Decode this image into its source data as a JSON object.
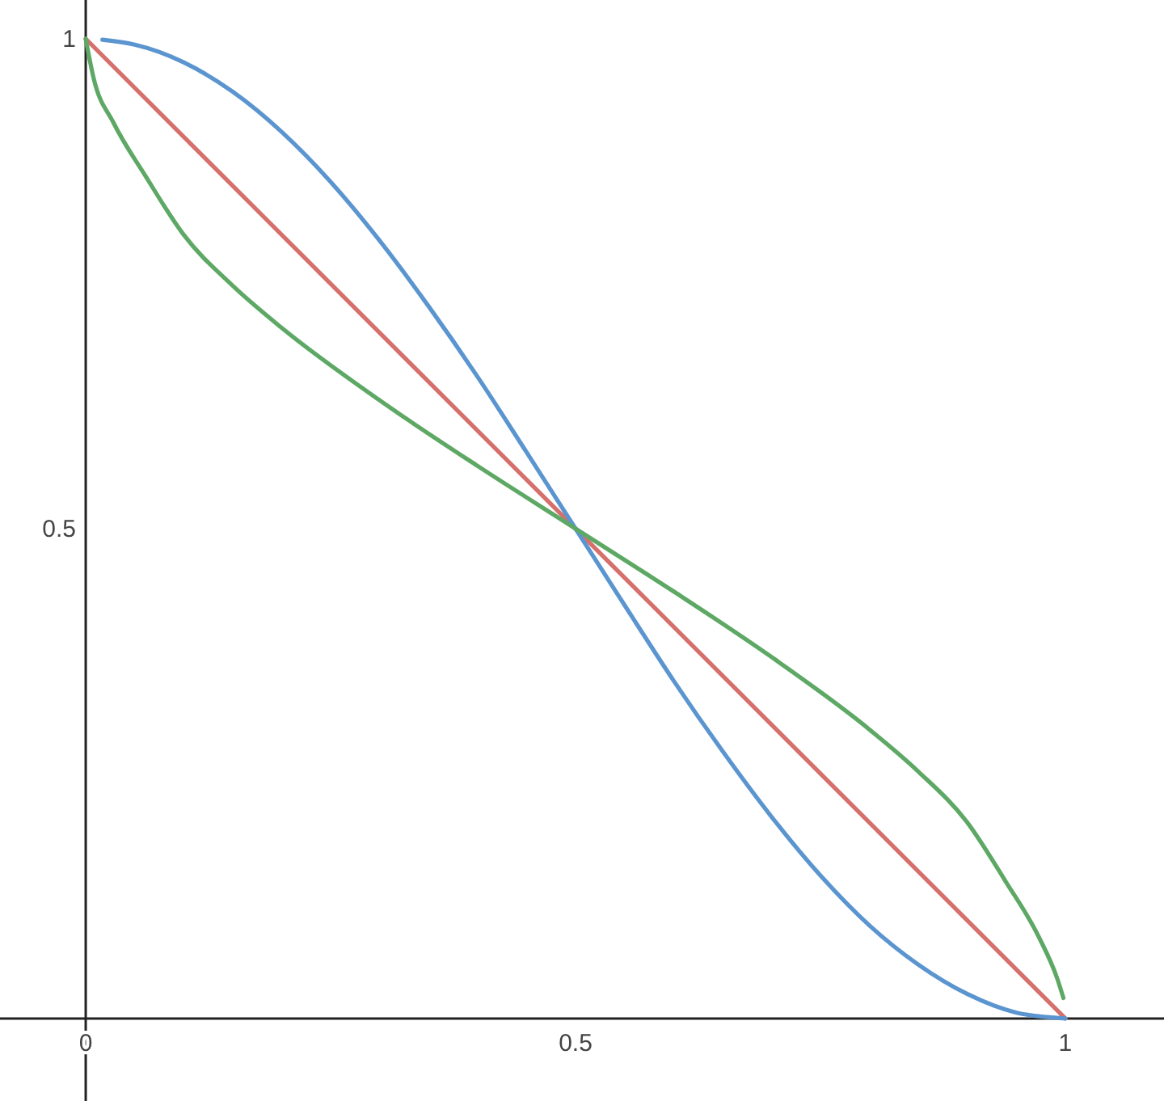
{
  "chart_data": {
    "type": "line",
    "xlim": [
      -0.0875,
      1.1007
    ],
    "ylim": [
      -0.0842,
      1.0396
    ],
    "xticks": [
      0,
      0.5,
      1
    ],
    "yticks": [
      0.5,
      1
    ],
    "grid": false,
    "marker": "none",
    "line_style": "solid",
    "series": [
      {
        "color": "#d6706c",
        "x": [
          0,
          1
        ],
        "values": [
          1,
          0
        ]
      },
      {
        "color": "#5b95d0",
        "x": [
          0.017,
          0.05,
          0.1,
          0.15,
          0.2,
          0.25,
          0.3,
          0.35,
          0.4,
          0.45,
          0.5,
          0.55,
          0.6,
          0.65,
          0.7,
          0.75,
          0.8,
          0.85,
          0.9,
          0.95,
          1
        ],
        "values": [
          0.999,
          0.994,
          0.976,
          0.946,
          0.905,
          0.854,
          0.794,
          0.727,
          0.655,
          0.578,
          0.5,
          0.422,
          0.345,
          0.273,
          0.206,
          0.146,
          0.095,
          0.055,
          0.025,
          0.006,
          0
        ]
      },
      {
        "color": "#5ea865",
        "x": [
          0,
          0.008,
          0.028,
          0.061,
          0.1,
          0.15,
          0.2,
          0.3,
          0.4,
          0.5,
          0.6,
          0.7,
          0.8,
          0.85,
          0.9,
          0.939,
          0.972,
          0.992,
          0.998
        ],
        "values": [
          1,
          0.96,
          0.915,
          0.86,
          0.8,
          0.748,
          0.705,
          0.631,
          0.564,
          0.5,
          0.436,
          0.369,
          0.295,
          0.252,
          0.2,
          0.14,
          0.085,
          0.04,
          0.021
        ]
      }
    ]
  }
}
